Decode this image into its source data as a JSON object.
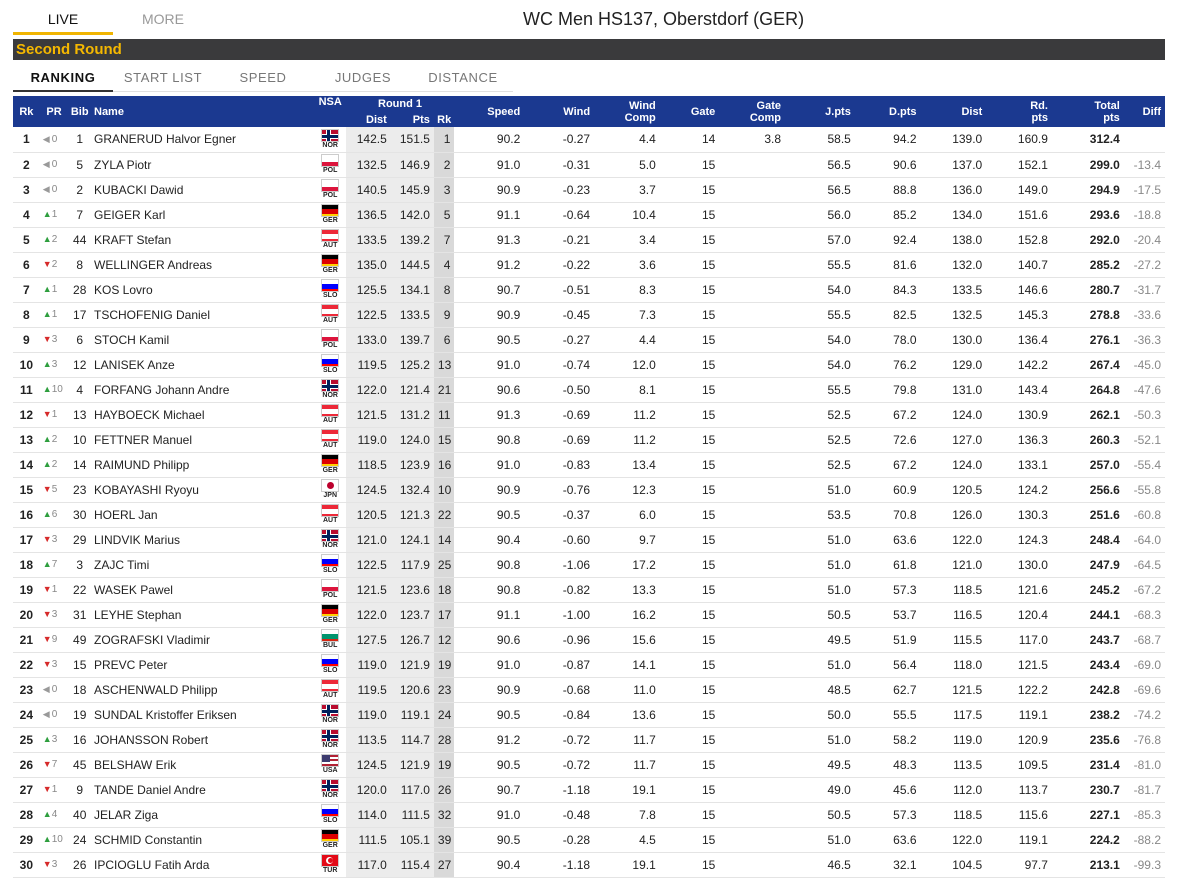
{
  "topnav": {
    "live": "LIVE",
    "more": "MORE",
    "title": "WC Men HS137, Oberstdorf (GER)"
  },
  "round": "Second Round",
  "subtabs": [
    "RANKING",
    "START LIST",
    "SPEED",
    "JUDGES",
    "DISTANCE"
  ],
  "headers": {
    "rk": "Rk",
    "pr": "PR",
    "bib": "Bib",
    "name": "Name",
    "nsa": "NSA",
    "round1": "Round 1",
    "dist": "Dist",
    "pts": "Pts",
    "r1rk": "Rk",
    "speed": "Speed",
    "wind": "Wind",
    "wind_comp_1": "Wind",
    "wind_comp_2": "Comp",
    "gate": "Gate",
    "gate_comp_1": "Gate",
    "gate_comp_2": "Comp",
    "jpts": "J.pts",
    "dpts": "D.pts",
    "distance": "Dist",
    "rdpts_1": "Rd.",
    "rdpts_2": "pts",
    "total_1": "Total",
    "total_2": "pts",
    "diff": "Diff"
  },
  "flag_colors": {
    "NOR": [
      "#ba0c2f",
      "#ffffff",
      "#00205b"
    ],
    "POL": [
      "#ffffff",
      "#dc143c"
    ],
    "GER": [
      "#000000",
      "#dd0000",
      "#ffce00"
    ],
    "AUT": [
      "#ed2939",
      "#ffffff",
      "#ed2939"
    ],
    "SLO": [
      "#ffffff",
      "#0000ff",
      "#ff0000"
    ],
    "JPN": [
      "#ffffff",
      "#bc002d"
    ],
    "BUL": [
      "#ffffff",
      "#00966e",
      "#d62612"
    ],
    "USA": [
      "#b22234",
      "#ffffff",
      "#3c3b6e"
    ],
    "TUR": [
      "#e30a17",
      "#ffffff"
    ]
  },
  "rows": [
    {
      "rk": "1",
      "dir": "eq",
      "pr": "0",
      "bib": "1",
      "name": "GRANERUD Halvor Egner",
      "nsa": "NOR",
      "d1": "142.5",
      "p1": "151.5",
      "r1": "1",
      "speed": "90.2",
      "wind": "-0.27",
      "wc": "4.4",
      "gate": "14",
      "gc": "3.8",
      "jp": "58.5",
      "dp": "94.2",
      "dist": "139.0",
      "rd": "160.9",
      "total": "312.4",
      "diff": ""
    },
    {
      "rk": "2",
      "dir": "eq",
      "pr": "0",
      "bib": "5",
      "name": "ZYLA Piotr",
      "nsa": "POL",
      "d1": "132.5",
      "p1": "146.9",
      "r1": "2",
      "speed": "91.0",
      "wind": "-0.31",
      "wc": "5.0",
      "gate": "15",
      "gc": "",
      "jp": "56.5",
      "dp": "90.6",
      "dist": "137.0",
      "rd": "152.1",
      "total": "299.0",
      "diff": "-13.4"
    },
    {
      "rk": "3",
      "dir": "eq",
      "pr": "0",
      "bib": "2",
      "name": "KUBACKI Dawid",
      "nsa": "POL",
      "d1": "140.5",
      "p1": "145.9",
      "r1": "3",
      "speed": "90.9",
      "wind": "-0.23",
      "wc": "3.7",
      "gate": "15",
      "gc": "",
      "jp": "56.5",
      "dp": "88.8",
      "dist": "136.0",
      "rd": "149.0",
      "total": "294.9",
      "diff": "-17.5"
    },
    {
      "rk": "4",
      "dir": "up",
      "pr": "1",
      "bib": "7",
      "name": "GEIGER Karl",
      "nsa": "GER",
      "d1": "136.5",
      "p1": "142.0",
      "r1": "5",
      "speed": "91.1",
      "wind": "-0.64",
      "wc": "10.4",
      "gate": "15",
      "gc": "",
      "jp": "56.0",
      "dp": "85.2",
      "dist": "134.0",
      "rd": "151.6",
      "total": "293.6",
      "diff": "-18.8"
    },
    {
      "rk": "5",
      "dir": "up",
      "pr": "2",
      "bib": "44",
      "name": "KRAFT Stefan",
      "nsa": "AUT",
      "d1": "133.5",
      "p1": "139.2",
      "r1": "7",
      "speed": "91.3",
      "wind": "-0.21",
      "wc": "3.4",
      "gate": "15",
      "gc": "",
      "jp": "57.0",
      "dp": "92.4",
      "dist": "138.0",
      "rd": "152.8",
      "total": "292.0",
      "diff": "-20.4"
    },
    {
      "rk": "6",
      "dir": "down",
      "pr": "2",
      "bib": "8",
      "name": "WELLINGER Andreas",
      "nsa": "GER",
      "d1": "135.0",
      "p1": "144.5",
      "r1": "4",
      "speed": "91.2",
      "wind": "-0.22",
      "wc": "3.6",
      "gate": "15",
      "gc": "",
      "jp": "55.5",
      "dp": "81.6",
      "dist": "132.0",
      "rd": "140.7",
      "total": "285.2",
      "diff": "-27.2"
    },
    {
      "rk": "7",
      "dir": "up",
      "pr": "1",
      "bib": "28",
      "name": "KOS Lovro",
      "nsa": "SLO",
      "d1": "125.5",
      "p1": "134.1",
      "r1": "8",
      "speed": "90.7",
      "wind": "-0.51",
      "wc": "8.3",
      "gate": "15",
      "gc": "",
      "jp": "54.0",
      "dp": "84.3",
      "dist": "133.5",
      "rd": "146.6",
      "total": "280.7",
      "diff": "-31.7"
    },
    {
      "rk": "8",
      "dir": "up",
      "pr": "1",
      "bib": "17",
      "name": "TSCHOFENIG Daniel",
      "nsa": "AUT",
      "d1": "122.5",
      "p1": "133.5",
      "r1": "9",
      "speed": "90.9",
      "wind": "-0.45",
      "wc": "7.3",
      "gate": "15",
      "gc": "",
      "jp": "55.5",
      "dp": "82.5",
      "dist": "132.5",
      "rd": "145.3",
      "total": "278.8",
      "diff": "-33.6"
    },
    {
      "rk": "9",
      "dir": "down",
      "pr": "3",
      "bib": "6",
      "name": "STOCH Kamil",
      "nsa": "POL",
      "d1": "133.0",
      "p1": "139.7",
      "r1": "6",
      "speed": "90.5",
      "wind": "-0.27",
      "wc": "4.4",
      "gate": "15",
      "gc": "",
      "jp": "54.0",
      "dp": "78.0",
      "dist": "130.0",
      "rd": "136.4",
      "total": "276.1",
      "diff": "-36.3"
    },
    {
      "rk": "10",
      "dir": "up",
      "pr": "3",
      "bib": "12",
      "name": "LANISEK Anze",
      "nsa": "SLO",
      "d1": "119.5",
      "p1": "125.2",
      "r1": "13",
      "speed": "91.0",
      "wind": "-0.74",
      "wc": "12.0",
      "gate": "15",
      "gc": "",
      "jp": "54.0",
      "dp": "76.2",
      "dist": "129.0",
      "rd": "142.2",
      "total": "267.4",
      "diff": "-45.0"
    },
    {
      "rk": "11",
      "dir": "up",
      "pr": "10",
      "bib": "4",
      "name": "FORFANG Johann Andre",
      "nsa": "NOR",
      "d1": "122.0",
      "p1": "121.4",
      "r1": "21",
      "speed": "90.6",
      "wind": "-0.50",
      "wc": "8.1",
      "gate": "15",
      "gc": "",
      "jp": "55.5",
      "dp": "79.8",
      "dist": "131.0",
      "rd": "143.4",
      "total": "264.8",
      "diff": "-47.6"
    },
    {
      "rk": "12",
      "dir": "down",
      "pr": "1",
      "bib": "13",
      "name": "HAYBOECK Michael",
      "nsa": "AUT",
      "d1": "121.5",
      "p1": "131.2",
      "r1": "11",
      "speed": "91.3",
      "wind": "-0.69",
      "wc": "11.2",
      "gate": "15",
      "gc": "",
      "jp": "52.5",
      "dp": "67.2",
      "dist": "124.0",
      "rd": "130.9",
      "total": "262.1",
      "diff": "-50.3"
    },
    {
      "rk": "13",
      "dir": "up",
      "pr": "2",
      "bib": "10",
      "name": "FETTNER Manuel",
      "nsa": "AUT",
      "d1": "119.0",
      "p1": "124.0",
      "r1": "15",
      "speed": "90.8",
      "wind": "-0.69",
      "wc": "11.2",
      "gate": "15",
      "gc": "",
      "jp": "52.5",
      "dp": "72.6",
      "dist": "127.0",
      "rd": "136.3",
      "total": "260.3",
      "diff": "-52.1"
    },
    {
      "rk": "14",
      "dir": "up",
      "pr": "2",
      "bib": "14",
      "name": "RAIMUND Philipp",
      "nsa": "GER",
      "d1": "118.5",
      "p1": "123.9",
      "r1": "16",
      "speed": "91.0",
      "wind": "-0.83",
      "wc": "13.4",
      "gate": "15",
      "gc": "",
      "jp": "52.5",
      "dp": "67.2",
      "dist": "124.0",
      "rd": "133.1",
      "total": "257.0",
      "diff": "-55.4"
    },
    {
      "rk": "15",
      "dir": "down",
      "pr": "5",
      "bib": "23",
      "name": "KOBAYASHI Ryoyu",
      "nsa": "JPN",
      "d1": "124.5",
      "p1": "132.4",
      "r1": "10",
      "speed": "90.9",
      "wind": "-0.76",
      "wc": "12.3",
      "gate": "15",
      "gc": "",
      "jp": "51.0",
      "dp": "60.9",
      "dist": "120.5",
      "rd": "124.2",
      "total": "256.6",
      "diff": "-55.8"
    },
    {
      "rk": "16",
      "dir": "up",
      "pr": "6",
      "bib": "30",
      "name": "HOERL Jan",
      "nsa": "AUT",
      "d1": "120.5",
      "p1": "121.3",
      "r1": "22",
      "speed": "90.5",
      "wind": "-0.37",
      "wc": "6.0",
      "gate": "15",
      "gc": "",
      "jp": "53.5",
      "dp": "70.8",
      "dist": "126.0",
      "rd": "130.3",
      "total": "251.6",
      "diff": "-60.8"
    },
    {
      "rk": "17",
      "dir": "down",
      "pr": "3",
      "bib": "29",
      "name": "LINDVIK Marius",
      "nsa": "NOR",
      "d1": "121.0",
      "p1": "124.1",
      "r1": "14",
      "speed": "90.4",
      "wind": "-0.60",
      "wc": "9.7",
      "gate": "15",
      "gc": "",
      "jp": "51.0",
      "dp": "63.6",
      "dist": "122.0",
      "rd": "124.3",
      "total": "248.4",
      "diff": "-64.0"
    },
    {
      "rk": "18",
      "dir": "up",
      "pr": "7",
      "bib": "3",
      "name": "ZAJC Timi",
      "nsa": "SLO",
      "d1": "122.5",
      "p1": "117.9",
      "r1": "25",
      "speed": "90.8",
      "wind": "-1.06",
      "wc": "17.2",
      "gate": "15",
      "gc": "",
      "jp": "51.0",
      "dp": "61.8",
      "dist": "121.0",
      "rd": "130.0",
      "total": "247.9",
      "diff": "-64.5"
    },
    {
      "rk": "19",
      "dir": "down",
      "pr": "1",
      "bib": "22",
      "name": "WASEK Pawel",
      "nsa": "POL",
      "d1": "121.5",
      "p1": "123.6",
      "r1": "18",
      "speed": "90.8",
      "wind": "-0.82",
      "wc": "13.3",
      "gate": "15",
      "gc": "",
      "jp": "51.0",
      "dp": "57.3",
      "dist": "118.5",
      "rd": "121.6",
      "total": "245.2",
      "diff": "-67.2"
    },
    {
      "rk": "20",
      "dir": "down",
      "pr": "3",
      "bib": "31",
      "name": "LEYHE Stephan",
      "nsa": "GER",
      "d1": "122.0",
      "p1": "123.7",
      "r1": "17",
      "speed": "91.1",
      "wind": "-1.00",
      "wc": "16.2",
      "gate": "15",
      "gc": "",
      "jp": "50.5",
      "dp": "53.7",
      "dist": "116.5",
      "rd": "120.4",
      "total": "244.1",
      "diff": "-68.3"
    },
    {
      "rk": "21",
      "dir": "down",
      "pr": "9",
      "bib": "49",
      "name": "ZOGRAFSKI Vladimir",
      "nsa": "BUL",
      "d1": "127.5",
      "p1": "126.7",
      "r1": "12",
      "speed": "90.6",
      "wind": "-0.96",
      "wc": "15.6",
      "gate": "15",
      "gc": "",
      "jp": "49.5",
      "dp": "51.9",
      "dist": "115.5",
      "rd": "117.0",
      "total": "243.7",
      "diff": "-68.7"
    },
    {
      "rk": "22",
      "dir": "down",
      "pr": "3",
      "bib": "15",
      "name": "PREVC Peter",
      "nsa": "SLO",
      "d1": "119.0",
      "p1": "121.9",
      "r1": "19",
      "speed": "91.0",
      "wind": "-0.87",
      "wc": "14.1",
      "gate": "15",
      "gc": "",
      "jp": "51.0",
      "dp": "56.4",
      "dist": "118.0",
      "rd": "121.5",
      "total": "243.4",
      "diff": "-69.0"
    },
    {
      "rk": "23",
      "dir": "eq",
      "pr": "0",
      "bib": "18",
      "name": "ASCHENWALD Philipp",
      "nsa": "AUT",
      "d1": "119.5",
      "p1": "120.6",
      "r1": "23",
      "speed": "90.9",
      "wind": "-0.68",
      "wc": "11.0",
      "gate": "15",
      "gc": "",
      "jp": "48.5",
      "dp": "62.7",
      "dist": "121.5",
      "rd": "122.2",
      "total": "242.8",
      "diff": "-69.6"
    },
    {
      "rk": "24",
      "dir": "eq",
      "pr": "0",
      "bib": "19",
      "name": "SUNDAL Kristoffer Eriksen",
      "nsa": "NOR",
      "d1": "119.0",
      "p1": "119.1",
      "r1": "24",
      "speed": "90.5",
      "wind": "-0.84",
      "wc": "13.6",
      "gate": "15",
      "gc": "",
      "jp": "50.0",
      "dp": "55.5",
      "dist": "117.5",
      "rd": "119.1",
      "total": "238.2",
      "diff": "-74.2"
    },
    {
      "rk": "25",
      "dir": "up",
      "pr": "3",
      "bib": "16",
      "name": "JOHANSSON Robert",
      "nsa": "NOR",
      "d1": "113.5",
      "p1": "114.7",
      "r1": "28",
      "speed": "91.2",
      "wind": "-0.72",
      "wc": "11.7",
      "gate": "15",
      "gc": "",
      "jp": "51.0",
      "dp": "58.2",
      "dist": "119.0",
      "rd": "120.9",
      "total": "235.6",
      "diff": "-76.8"
    },
    {
      "rk": "26",
      "dir": "down",
      "pr": "7",
      "bib": "45",
      "name": "BELSHAW Erik",
      "nsa": "USA",
      "d1": "124.5",
      "p1": "121.9",
      "r1": "19",
      "speed": "90.5",
      "wind": "-0.72",
      "wc": "11.7",
      "gate": "15",
      "gc": "",
      "jp": "49.5",
      "dp": "48.3",
      "dist": "113.5",
      "rd": "109.5",
      "total": "231.4",
      "diff": "-81.0"
    },
    {
      "rk": "27",
      "dir": "down",
      "pr": "1",
      "bib": "9",
      "name": "TANDE Daniel Andre",
      "nsa": "NOR",
      "d1": "120.0",
      "p1": "117.0",
      "r1": "26",
      "speed": "90.7",
      "wind": "-1.18",
      "wc": "19.1",
      "gate": "15",
      "gc": "",
      "jp": "49.0",
      "dp": "45.6",
      "dist": "112.0",
      "rd": "113.7",
      "total": "230.7",
      "diff": "-81.7"
    },
    {
      "rk": "28",
      "dir": "up",
      "pr": "4",
      "bib": "40",
      "name": "JELAR Ziga",
      "nsa": "SLO",
      "d1": "114.0",
      "p1": "111.5",
      "r1": "32",
      "speed": "91.0",
      "wind": "-0.48",
      "wc": "7.8",
      "gate": "15",
      "gc": "",
      "jp": "50.5",
      "dp": "57.3",
      "dist": "118.5",
      "rd": "115.6",
      "total": "227.1",
      "diff": "-85.3"
    },
    {
      "rk": "29",
      "dir": "up",
      "pr": "10",
      "bib": "24",
      "name": "SCHMID Constantin",
      "nsa": "GER",
      "d1": "111.5",
      "p1": "105.1",
      "r1": "39",
      "speed": "90.5",
      "wind": "-0.28",
      "wc": "4.5",
      "gate": "15",
      "gc": "",
      "jp": "51.0",
      "dp": "63.6",
      "dist": "122.0",
      "rd": "119.1",
      "total": "224.2",
      "diff": "-88.2"
    },
    {
      "rk": "30",
      "dir": "down",
      "pr": "3",
      "bib": "26",
      "name": "IPCIOGLU Fatih Arda",
      "nsa": "TUR",
      "d1": "117.0",
      "p1": "115.4",
      "r1": "27",
      "speed": "90.4",
      "wind": "-1.18",
      "wc": "19.1",
      "gate": "15",
      "gc": "",
      "jp": "46.5",
      "dp": "32.1",
      "dist": "104.5",
      "rd": "97.7",
      "total": "213.1",
      "diff": "-99.3"
    }
  ]
}
